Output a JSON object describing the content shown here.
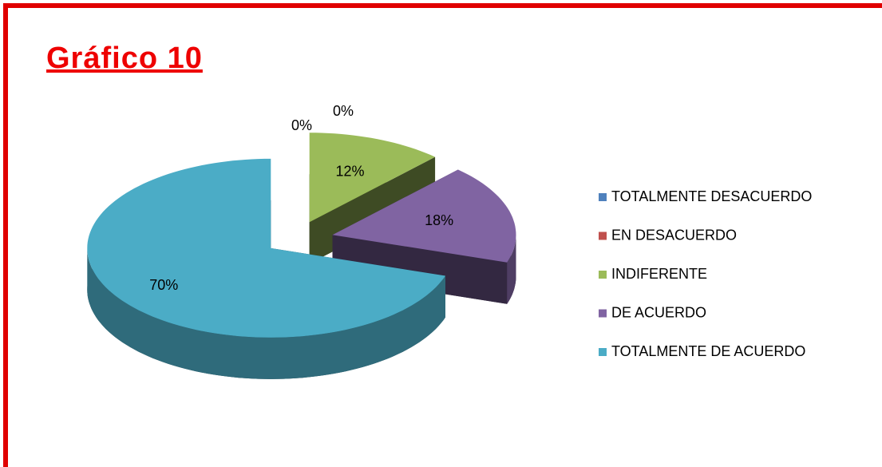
{
  "chart_data": {
    "type": "pie",
    "title": "Gráfico 10",
    "categories": [
      "TOTALMENTE DESACUERDO",
      "EN DESACUERDO",
      "INDIFERENTE",
      "DE ACUERDO",
      "TOTALMENTE DE ACUERDO"
    ],
    "values": [
      0,
      0,
      12,
      18,
      70
    ],
    "value_labels": [
      "0%",
      "0%",
      "12%",
      "18%",
      "70%"
    ],
    "colors": [
      "#4f81bd",
      "#c0504d",
      "#9bbb59",
      "#8064a2",
      "#4bacc6"
    ],
    "legend": "right"
  }
}
